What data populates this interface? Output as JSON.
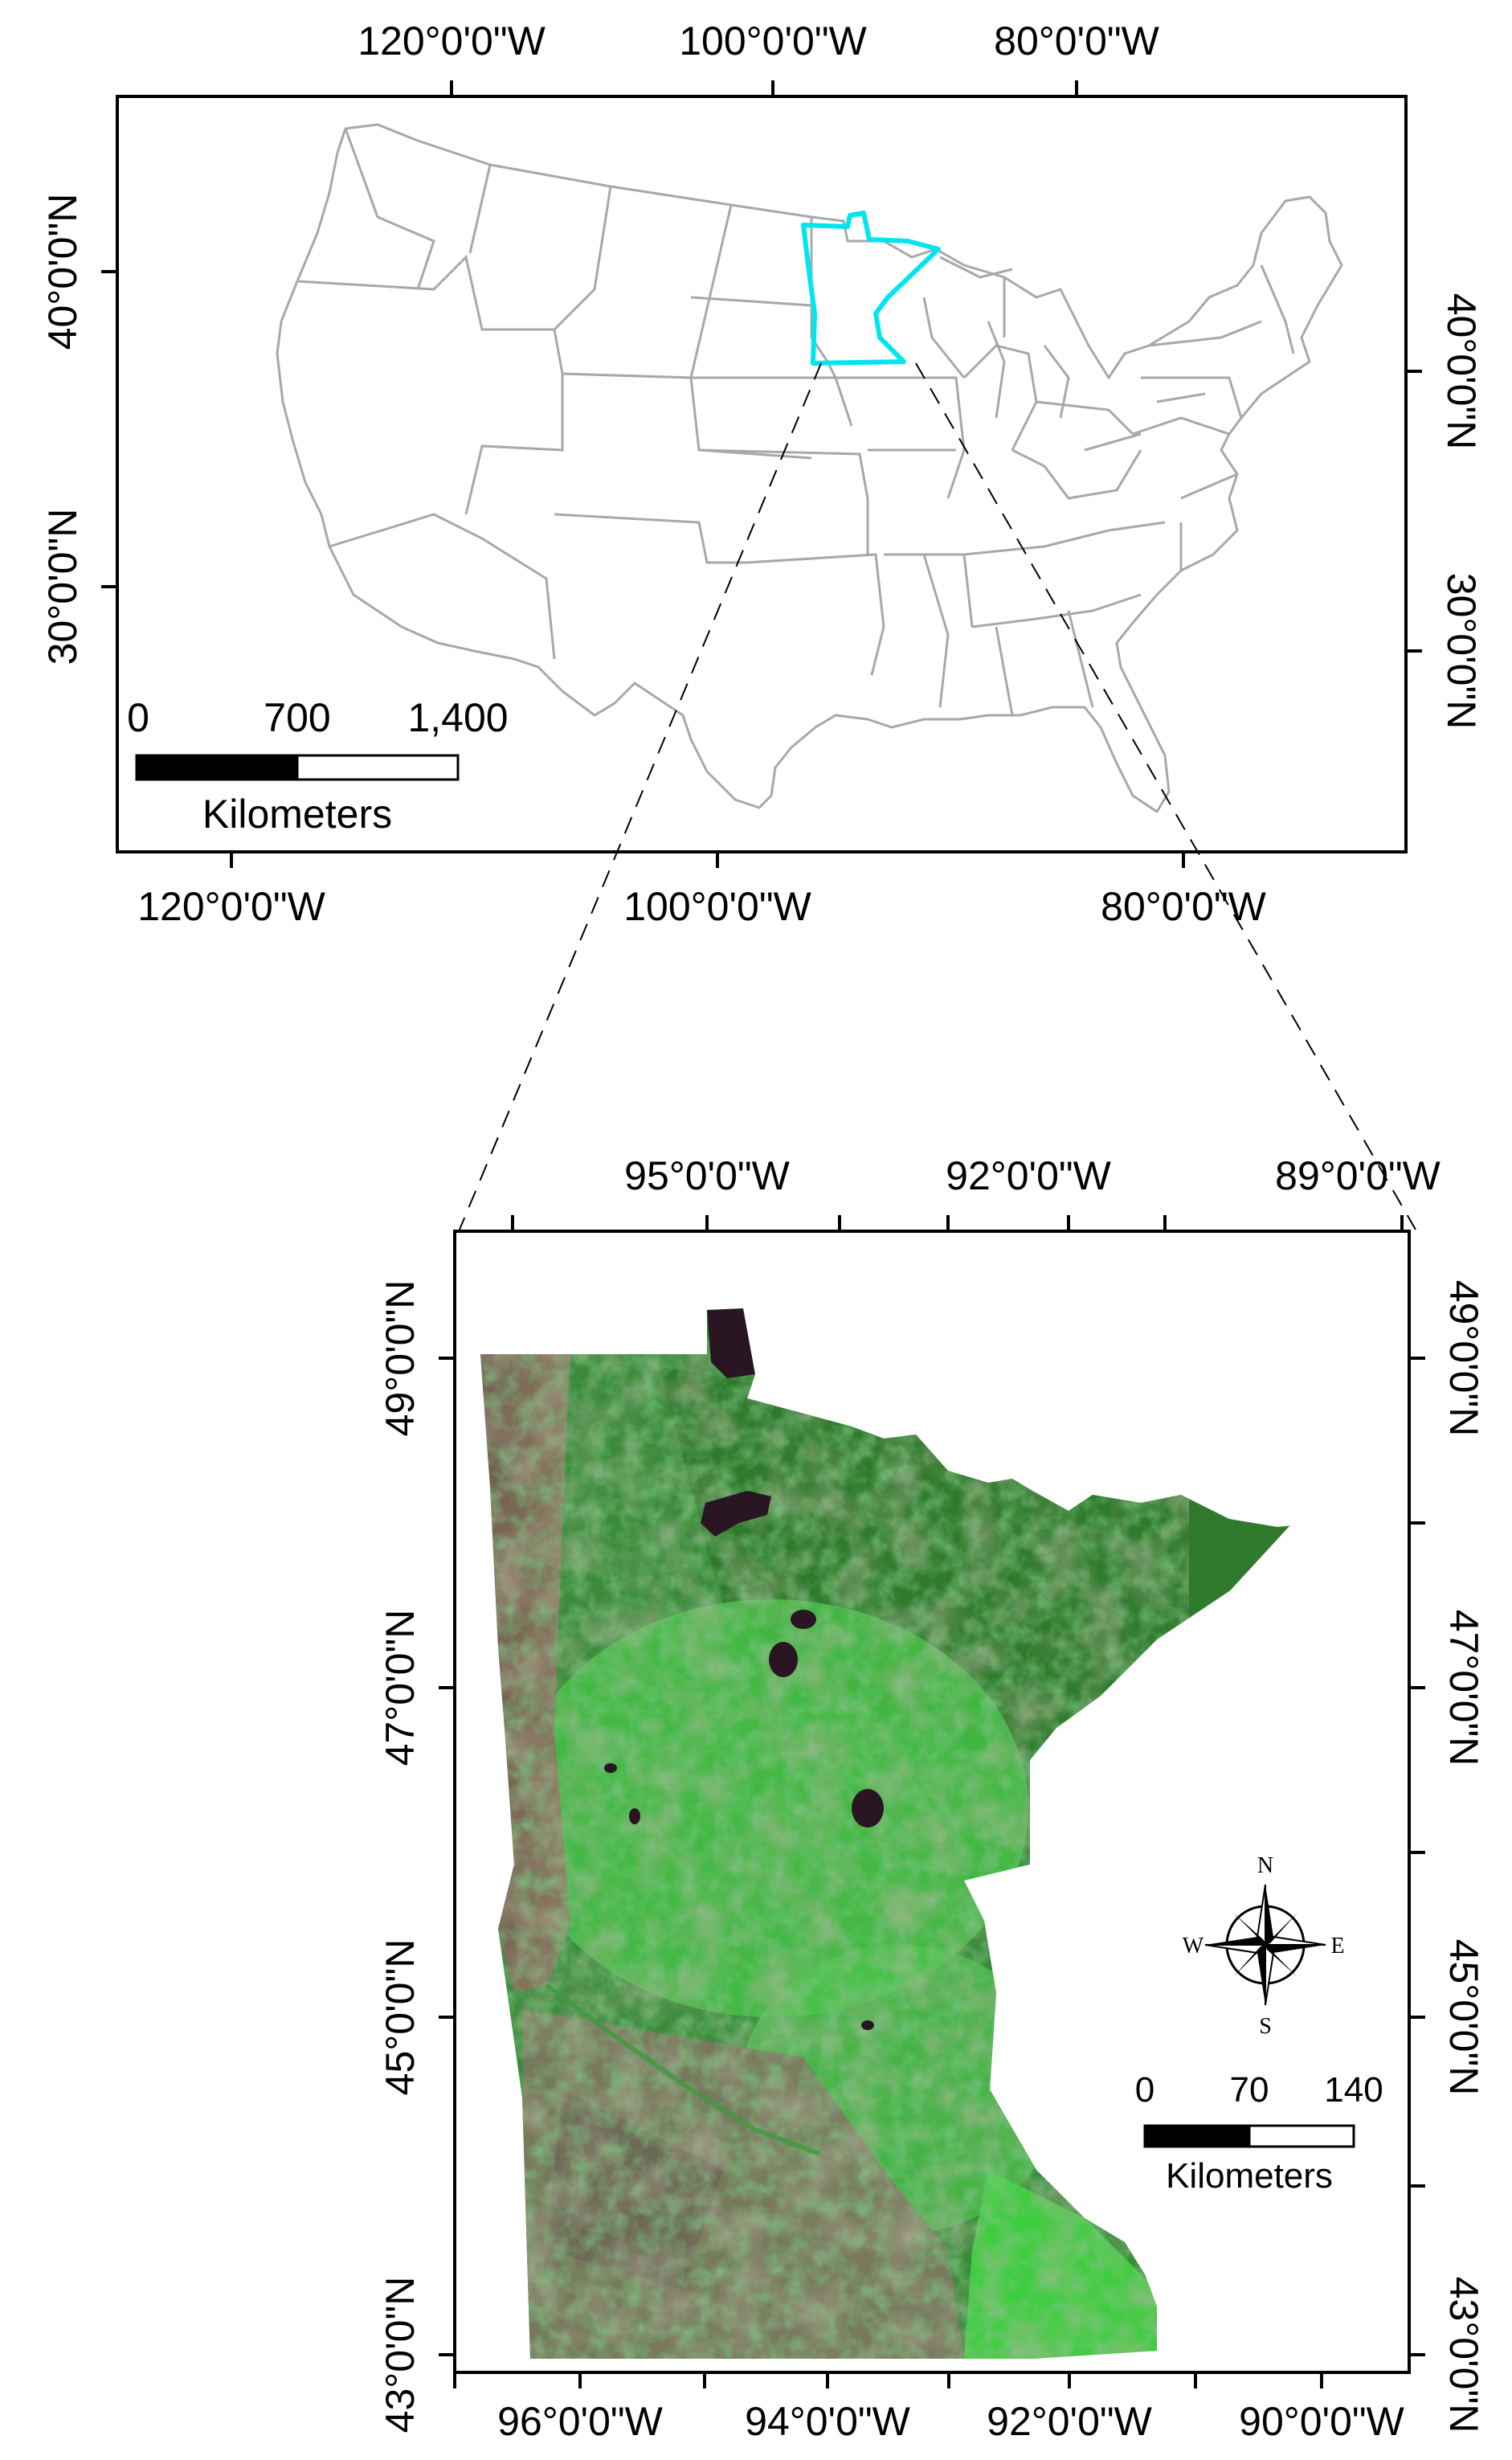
{
  "overview_map": {
    "top_longitudes": [
      "120°0'0\"W",
      "100°0'0\"W",
      "80°0'0\"W"
    ],
    "bottom_longitudes": [
      "120°0'0\"W",
      "100°0'0\"W",
      "80°0'0\"W"
    ],
    "left_latitudes": [
      "40°0'0\"N",
      "30°0'0\"N"
    ],
    "right_latitudes": [
      "40°0'0\"N",
      "30°0'0\"N"
    ],
    "scale_bar": {
      "ticks": [
        "0",
        "700",
        "1,400"
      ],
      "unit": "Kilometers"
    },
    "highlight_state": "Minnesota",
    "highlight_color": "#00e5ee",
    "state_line_color": "#a8a8a8"
  },
  "detail_map": {
    "top_longitudes": [
      "95°0'0\"W",
      "92°0'0\"W",
      "89°0'0\"W"
    ],
    "bottom_longitudes": [
      "96°0'0\"W",
      "94°0'0\"W",
      "92°0'0\"W",
      "90°0'0\"W"
    ],
    "left_latitudes": [
      "49°0'0\"N",
      "47°0'0\"N",
      "45°0'0\"N",
      "43°0'0\"N"
    ],
    "right_latitudes": [
      "49°0'0\"N",
      "47°0'0\"N",
      "45°0'0\"N",
      "43°0'0\"N"
    ],
    "compass": {
      "n": "N",
      "s": "S",
      "e": "E",
      "w": "W"
    },
    "scale_bar": {
      "ticks": [
        "0",
        "70",
        "140"
      ],
      "unit": "Kilometers"
    },
    "imagery_colors": {
      "forest": "#2f7d2a",
      "bright_veg": "#43d043",
      "agri": "#8a7a5e",
      "water": "#2a1522"
    }
  }
}
